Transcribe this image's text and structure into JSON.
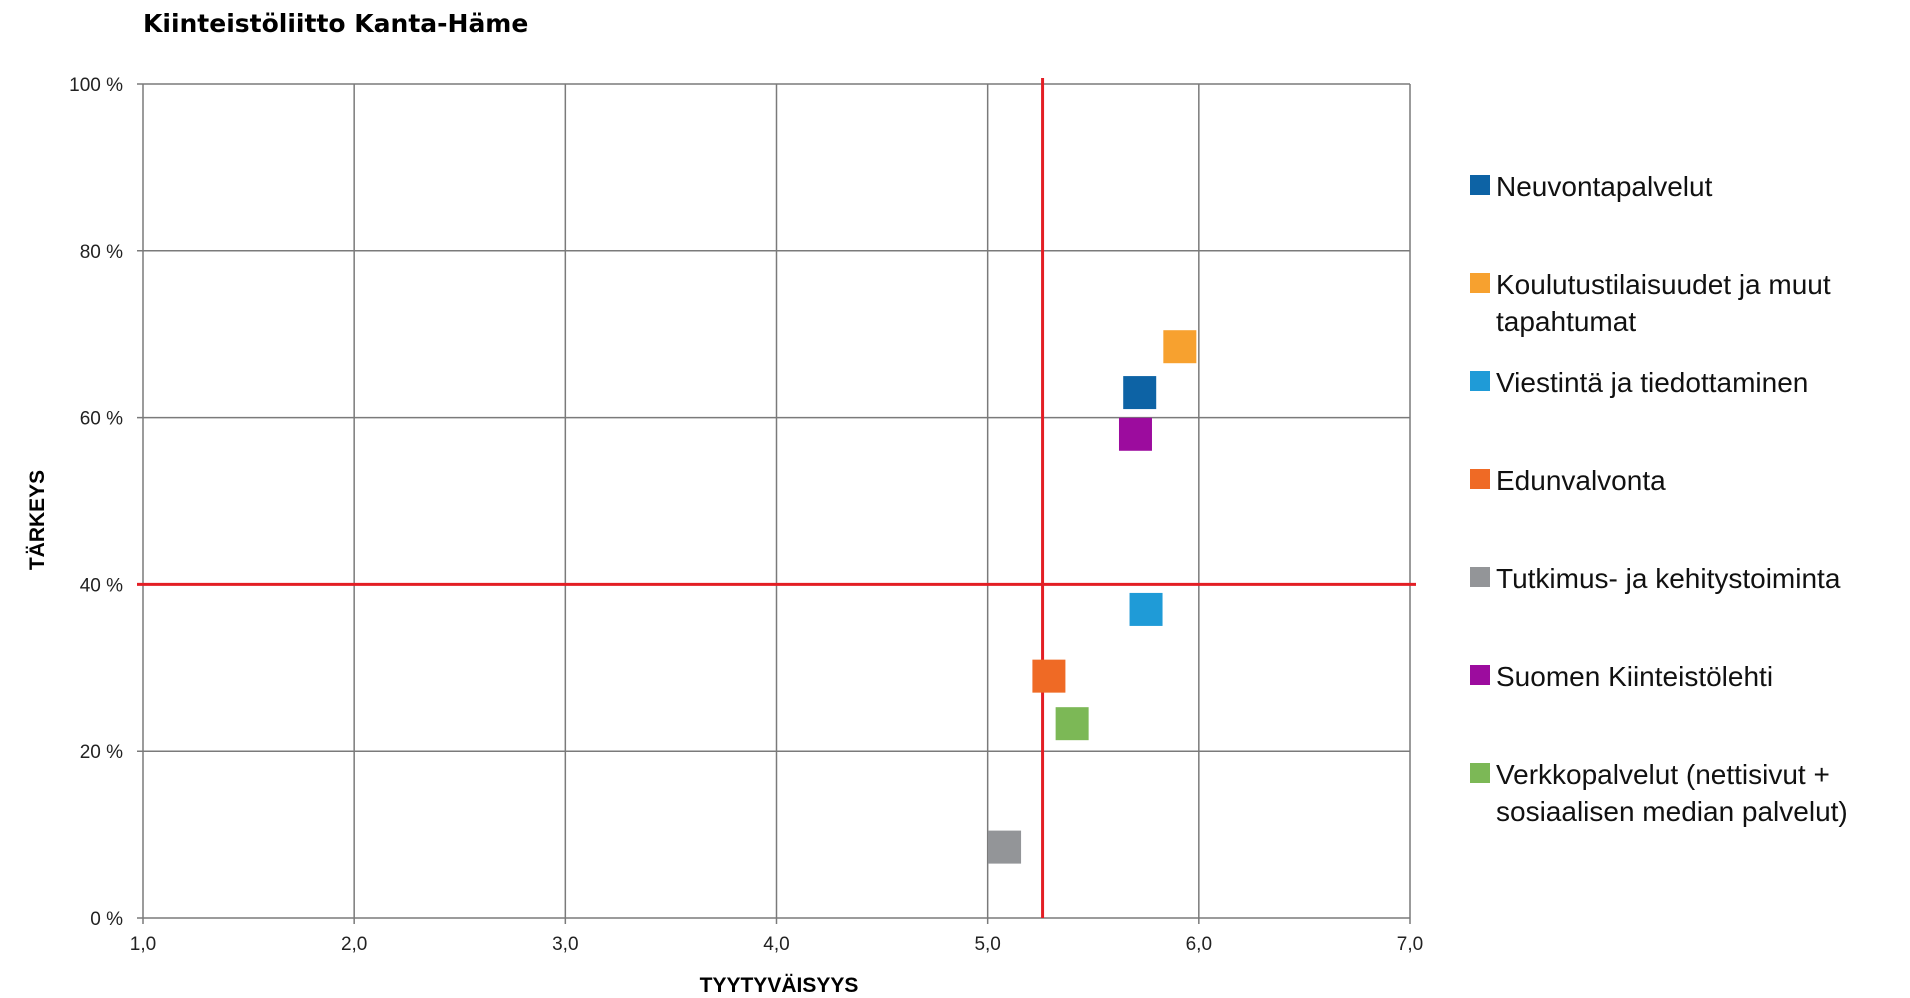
{
  "chart_data": {
    "type": "scatter",
    "title": "Kiinteistöliitto Kanta-Häme",
    "xlabel": "TYYTYVÄISYYS",
    "ylabel": "TÄRKEYS",
    "xlim": [
      1.0,
      7.0
    ],
    "ylim": [
      0,
      100
    ],
    "x_ticks": [
      "1,0",
      "2,0",
      "3,0",
      "4,0",
      "5,0",
      "6,0",
      "7,0"
    ],
    "y_ticks": [
      "0 %",
      "20 %",
      "40 %",
      "60 %",
      "80 %",
      "100 %"
    ],
    "grid": true,
    "legend_position": "right",
    "reference_lines": {
      "x": 5.26,
      "y": 40,
      "color": "#e31e24"
    },
    "series": [
      {
        "name": "Neuvontapalvelut",
        "color": "#0d63a5",
        "x": 5.72,
        "y": 63
      },
      {
        "name": "Koulutustilaisuudet ja muut tapahtumat",
        "color": "#f7a12f",
        "x": 5.91,
        "y": 68.5
      },
      {
        "name": "Viestintä ja tiedottaminen",
        "color": "#1f9bd7",
        "x": 5.75,
        "y": 37
      },
      {
        "name": "Edunvalvonta",
        "color": "#ef6a25",
        "x": 5.29,
        "y": 29
      },
      {
        "name": "Tutkimus- ja kehitystoiminta",
        "color": "#939598",
        "x": 5.08,
        "y": 8.5
      },
      {
        "name": "Suomen Kiinteistölehti",
        "color": "#9c0c9e",
        "x": 5.7,
        "y": 58
      },
      {
        "name": "Verkkopalvelut (nettisivut + sosiaalisen median palvelut)",
        "color": "#7cb856",
        "x": 5.4,
        "y": 23.3
      }
    ]
  }
}
